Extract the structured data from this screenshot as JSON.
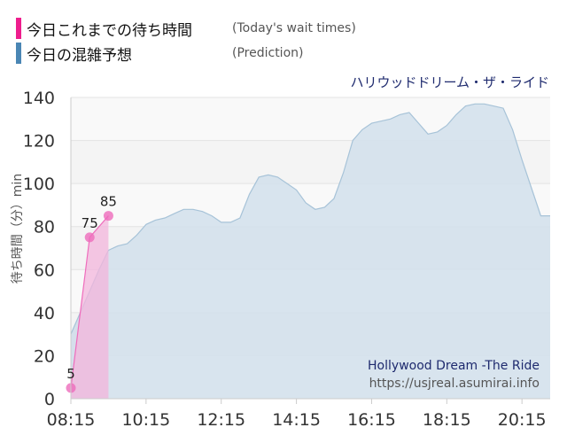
{
  "legend": [
    {
      "label": "今日これまでの待ち時間",
      "note": "(Today's wait times)",
      "color": "#ee1d8d"
    },
    {
      "label": "今日の混雑予想",
      "note": "(Prediction)",
      "color": "#4a86b4"
    }
  ],
  "chart_data": {
    "type": "area",
    "title": "ハリウッドドリーム・ザ・ライド",
    "watermark": [
      "Hollywood Dream -The Ride",
      "https://usjreal.asumirai.info"
    ],
    "ylabel": "待ち時間（分）min",
    "xlim": [
      "08:15",
      "21:00"
    ],
    "ylim": [
      0,
      140
    ],
    "yticks": [
      0,
      20,
      40,
      60,
      80,
      100,
      120,
      140
    ],
    "xticks": [
      "08:15",
      "10:15",
      "12:15",
      "14:15",
      "16:15",
      "18:15",
      "20:15"
    ],
    "grid": true,
    "colors": {
      "prediction_fill": "#d4e1ec",
      "prediction_line": "#a7c3d8",
      "today_fill": "#f3b6dc",
      "today_line": "#ef6cbc",
      "today_marker": "#ee6cbc",
      "past_band": "#d9b7d9",
      "title": "#1e2a6e",
      "watermark_title": "#1e2a6e",
      "watermark_url": "#555555"
    },
    "series": [
      {
        "name": "今日これまでの待ち時間",
        "x": [
          "08:15",
          "08:45",
          "09:15"
        ],
        "values": [
          5,
          75,
          85
        ],
        "data_labels": [
          "5",
          "75",
          "85"
        ]
      },
      {
        "name": "今日の混雑予想",
        "x": [
          "08:15",
          "08:30",
          "08:45",
          "09:00",
          "09:15",
          "09:30",
          "09:45",
          "10:00",
          "10:15",
          "10:30",
          "10:45",
          "11:00",
          "11:15",
          "11:30",
          "11:45",
          "12:00",
          "12:15",
          "12:30",
          "12:45",
          "13:00",
          "13:15",
          "13:30",
          "13:45",
          "14:00",
          "14:15",
          "14:30",
          "14:45",
          "15:00",
          "15:15",
          "15:30",
          "15:45",
          "16:00",
          "16:15",
          "16:30",
          "16:45",
          "17:00",
          "17:15",
          "17:30",
          "17:45",
          "18:00",
          "18:15",
          "18:30",
          "18:45",
          "19:00",
          "19:15",
          "19:30",
          "19:45",
          "20:00",
          "20:15",
          "20:30",
          "20:45",
          "21:00"
        ],
        "values": [
          30,
          40,
          50,
          60,
          69,
          71,
          72,
          76,
          81,
          83,
          84,
          86,
          88,
          88,
          87,
          85,
          82,
          82,
          84,
          95,
          103,
          104,
          103,
          100,
          97,
          91,
          88,
          89,
          93,
          105,
          120,
          125,
          128,
          129,
          130,
          132,
          133,
          128,
          123,
          124,
          127,
          132,
          136,
          137,
          137,
          136,
          135,
          125,
          111,
          98,
          85,
          85
        ]
      }
    ]
  }
}
